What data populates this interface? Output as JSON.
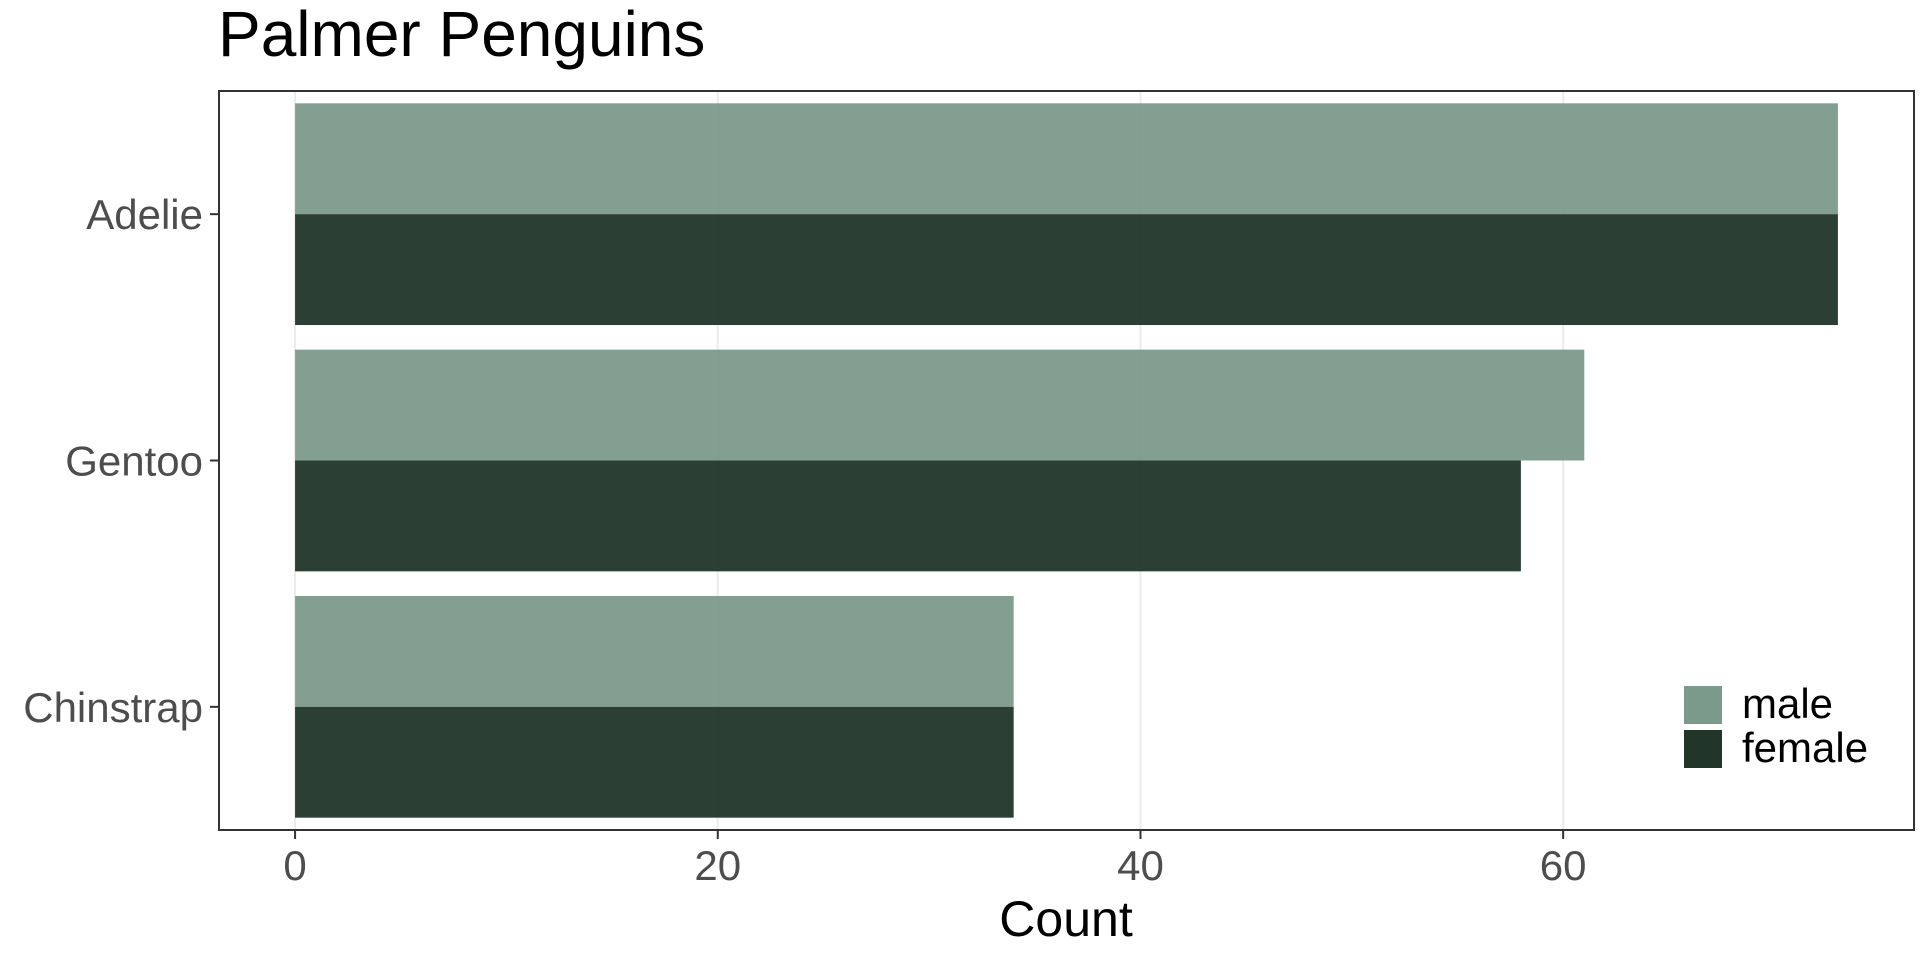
{
  "chart_data": {
    "type": "bar",
    "orientation": "horizontal",
    "title": "Palmer Penguins",
    "xlabel": "Count",
    "ylabel": "",
    "categories": [
      "Adelie",
      "Gentoo",
      "Chinstrap"
    ],
    "series": [
      {
        "name": "male",
        "values": [
          73,
          61,
          34
        ],
        "color": "#7b9a8b"
      },
      {
        "name": "female",
        "values": [
          73,
          58,
          34
        ],
        "color": "#213529"
      }
    ],
    "xlim": [
      -3.6,
      76.6
    ],
    "xticks": [
      0,
      20,
      40,
      60
    ],
    "grid": true,
    "legend_position": "bottom-right"
  }
}
